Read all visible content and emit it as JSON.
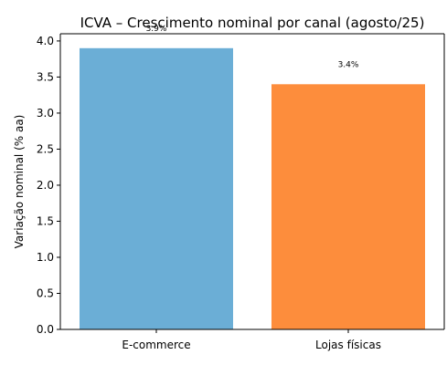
{
  "chart_data": {
    "type": "bar",
    "title": "ICVA – Crescimento nominal por canal (agosto/25)",
    "xlabel": "",
    "ylabel": "Variação nominal (% aa)",
    "categories": [
      "E-commerce",
      "Lojas físicas"
    ],
    "values": [
      3.9,
      3.4
    ],
    "value_labels": [
      "3.9%",
      "3.4%"
    ],
    "colors": [
      "#6baed6",
      "#fd8d3c"
    ],
    "ylim": [
      0,
      4.1
    ],
    "yticks": [
      0.0,
      0.5,
      1.0,
      1.5,
      2.0,
      2.5,
      3.0,
      3.5,
      4.0
    ],
    "ytick_labels": [
      "0.0",
      "0.5",
      "1.0",
      "1.5",
      "2.0",
      "2.5",
      "3.0",
      "3.5",
      "4.0"
    ],
    "grid": false,
    "legend": "none"
  }
}
